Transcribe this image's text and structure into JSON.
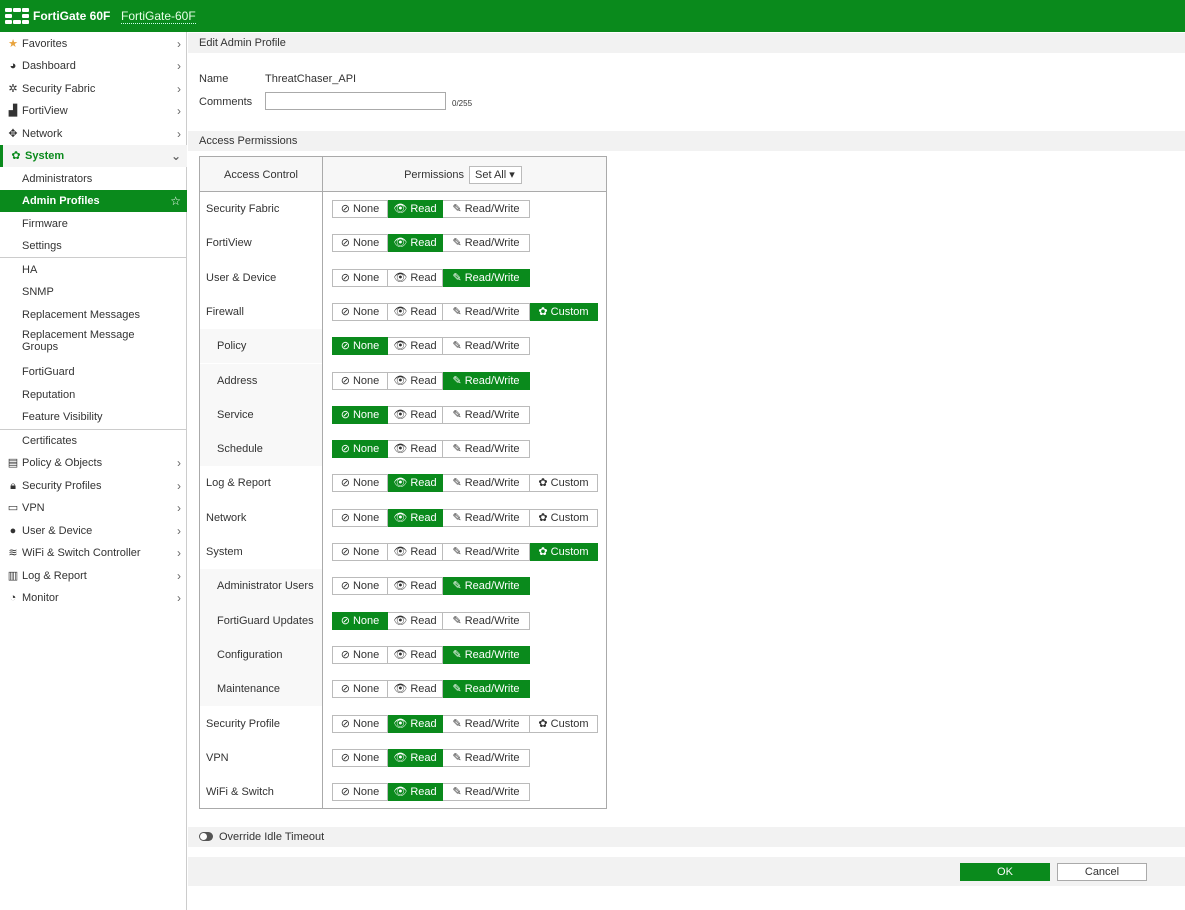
{
  "header": {
    "brand": "FortiGate 60F",
    "hostname": "FortiGate-60F",
    "color": "#0a8a1c"
  },
  "sidebar": {
    "items": [
      {
        "label": "Favorites",
        "icon": "star-icon",
        "glyph": "★",
        "chevron": "›"
      },
      {
        "label": "Dashboard",
        "icon": "dashboard-icon",
        "glyph": "◕",
        "chevron": "›"
      },
      {
        "label": "Security Fabric",
        "icon": "fabric-icon",
        "glyph": "✲",
        "chevron": "›"
      },
      {
        "label": "FortiView",
        "icon": "chart-icon",
        "glyph": "▟",
        "chevron": "›"
      },
      {
        "label": "Network",
        "icon": "move-icon",
        "glyph": "✥",
        "chevron": "›"
      },
      {
        "label": "System",
        "icon": "gear-icon",
        "glyph": "✿",
        "chevron": "⌄"
      },
      {
        "label": "Administrators"
      },
      {
        "label": "Admin Profiles",
        "glyph": "☆"
      },
      {
        "label": "Firmware"
      },
      {
        "label": "Settings"
      },
      {
        "label": "HA"
      },
      {
        "label": "SNMP"
      },
      {
        "label": "Replacement Messages"
      },
      {
        "label": "Replacement Message Groups"
      },
      {
        "label": "FortiGuard"
      },
      {
        "label": "Reputation"
      },
      {
        "label": "Feature Visibility"
      },
      {
        "label": "Certificates"
      },
      {
        "label": "Policy & Objects",
        "icon": "doc-icon",
        "glyph": "▤",
        "chevron": "›"
      },
      {
        "label": "Security Profiles",
        "icon": "lock-icon",
        "glyph": "🔒︎",
        "chevron": "›"
      },
      {
        "label": "VPN",
        "icon": "laptop-icon",
        "glyph": "▭",
        "chevron": "›"
      },
      {
        "label": "User & Device",
        "icon": "user-icon",
        "glyph": "●",
        "chevron": "›"
      },
      {
        "label": "WiFi & Switch Controller",
        "icon": "wifi-icon",
        "glyph": "≋",
        "chevron": "›"
      },
      {
        "label": "Log & Report",
        "icon": "bar-chart-icon",
        "glyph": "▥",
        "chevron": "›"
      },
      {
        "label": "Monitor",
        "icon": "pie-icon",
        "glyph": "◔",
        "chevron": "›"
      }
    ]
  },
  "page": {
    "title": "Edit Admin Profile",
    "name_label": "Name",
    "name_value": "ThreatChaser_API",
    "comments_label": "Comments",
    "comments_value": "",
    "comments_count": "0/255",
    "section": "Access Permissions",
    "col_access": "Access Control",
    "col_perm": "Permissions",
    "set_all": "Set All ▾",
    "override": "Override Idle Timeout",
    "ok": "OK",
    "cancel": "Cancel"
  },
  "buttons": {
    "none": "⊘ None",
    "read": "👁︎ Read",
    "rw": "✎ Read/Write",
    "custom": "✿ Custom"
  },
  "permissions": [
    {
      "name": "Security Fabric",
      "value": "read",
      "custom": false,
      "sub": false
    },
    {
      "name": "FortiView",
      "value": "read",
      "custom": false,
      "sub": false
    },
    {
      "name": "User & Device",
      "value": "rw",
      "custom": false,
      "sub": false
    },
    {
      "name": "Firewall",
      "value": "custom",
      "custom": true,
      "sub": false
    },
    {
      "name": "Policy",
      "value": "none",
      "custom": false,
      "sub": true
    },
    {
      "name": "Address",
      "value": "rw",
      "custom": false,
      "sub": true
    },
    {
      "name": "Service",
      "value": "none",
      "custom": false,
      "sub": true
    },
    {
      "name": "Schedule",
      "value": "none",
      "custom": false,
      "sub": true
    },
    {
      "name": "Log & Report",
      "value": "read",
      "custom": true,
      "sub": false
    },
    {
      "name": "Network",
      "value": "read",
      "custom": true,
      "sub": false
    },
    {
      "name": "System",
      "value": "custom",
      "custom": true,
      "sub": false
    },
    {
      "name": "Administrator Users",
      "value": "rw",
      "custom": false,
      "sub": true
    },
    {
      "name": "FortiGuard Updates",
      "value": "none",
      "custom": false,
      "sub": true
    },
    {
      "name": "Configuration",
      "value": "rw",
      "custom": false,
      "sub": true
    },
    {
      "name": "Maintenance",
      "value": "rw",
      "custom": false,
      "sub": true
    },
    {
      "name": "Security Profile",
      "value": "read",
      "custom": true,
      "sub": false
    },
    {
      "name": "VPN",
      "value": "read",
      "custom": false,
      "sub": false
    },
    {
      "name": "WiFi & Switch",
      "value": "read",
      "custom": false,
      "sub": false
    }
  ]
}
